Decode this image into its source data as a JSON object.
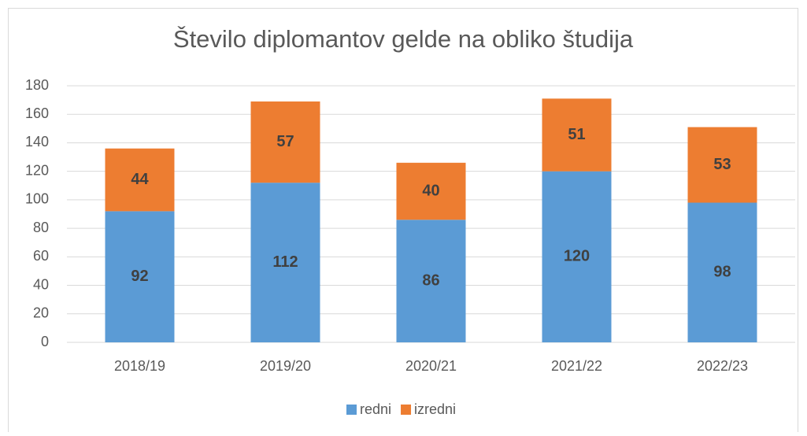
{
  "chart_data": {
    "type": "stacked_bar",
    "title": "Število diplomantov gelde na obliko študija",
    "categories": [
      "2018/19",
      "2019/20",
      "2020/21",
      "2021/22",
      "2022/23"
    ],
    "series": [
      {
        "name": "redni",
        "color": "#5b9bd5",
        "values": [
          92,
          112,
          86,
          120,
          98
        ]
      },
      {
        "name": "izredni",
        "color": "#ed7d31",
        "values": [
          44,
          57,
          40,
          51,
          53
        ]
      }
    ],
    "ylim": [
      0,
      180
    ],
    "yticks": [
      0,
      20,
      40,
      60,
      80,
      100,
      120,
      140,
      160,
      180
    ],
    "grid": true,
    "legend": "bottom"
  }
}
